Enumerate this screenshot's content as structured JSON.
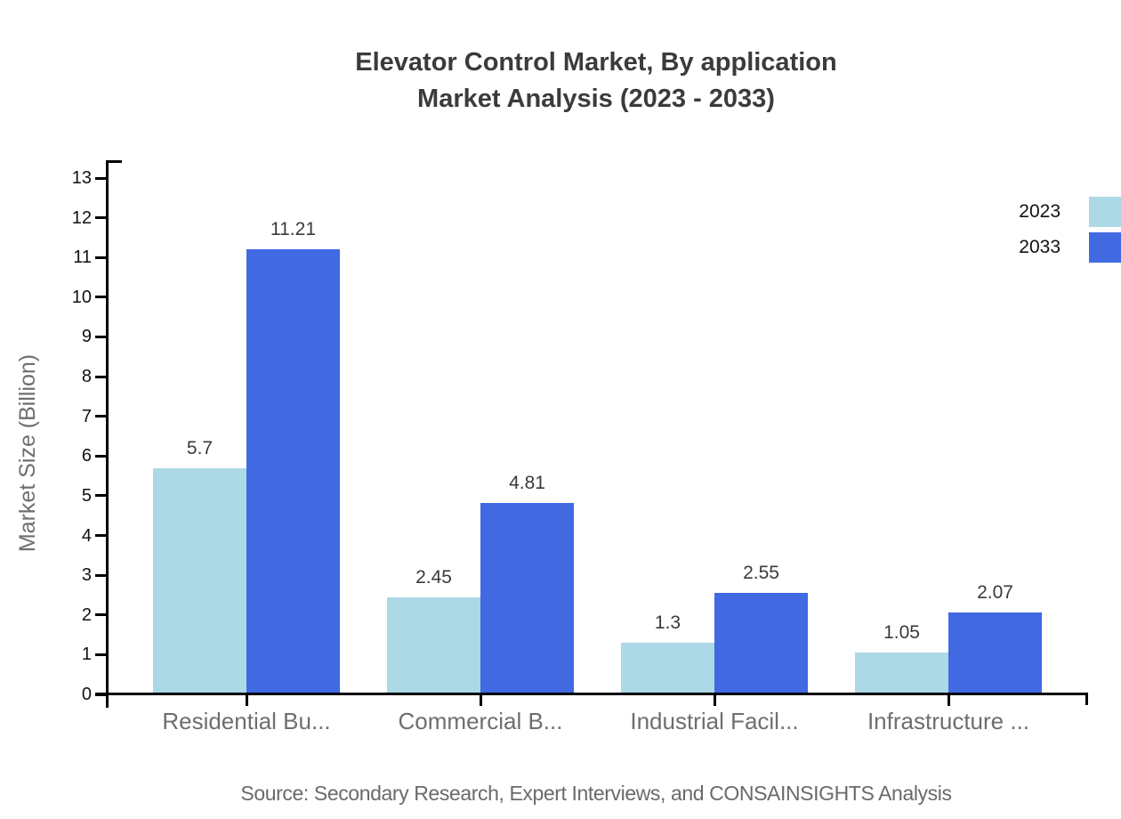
{
  "title": {
    "line1": "Elevator Control Market, By application",
    "line2": "Market Analysis (2023 - 2033)"
  },
  "source": "Source: Secondary Research, Expert Interviews, and CONSAINSIGHTS Analysis",
  "chart_data": {
    "type": "bar",
    "title": "Elevator Control Market, By application Market Analysis (2023 - 2033)",
    "categories": [
      "Residential Bu...",
      "Commercial B...",
      "Industrial Facil...",
      "Infrastructure ..."
    ],
    "series": [
      {
        "name": "2023",
        "color": "#ADD8E6",
        "values": [
          5.7,
          2.45,
          1.3,
          1.05
        ]
      },
      {
        "name": "2033",
        "color": "#4169E1",
        "values": [
          11.21,
          4.81,
          2.55,
          2.07
        ]
      }
    ],
    "xlabel": "",
    "ylabel": "Market Size (Billion)",
    "ylim": [
      0,
      13
    ],
    "ytick_step": 1,
    "grid": false,
    "legend_position": "top-right",
    "value_labels": true
  },
  "colors": {
    "axis": "#000000",
    "title_text": "#3b3b3b",
    "muted_text": "#6e6e6e",
    "tick_text": "#111111",
    "series_2023": "#ADD8E6",
    "series_2033": "#4169E1"
  }
}
